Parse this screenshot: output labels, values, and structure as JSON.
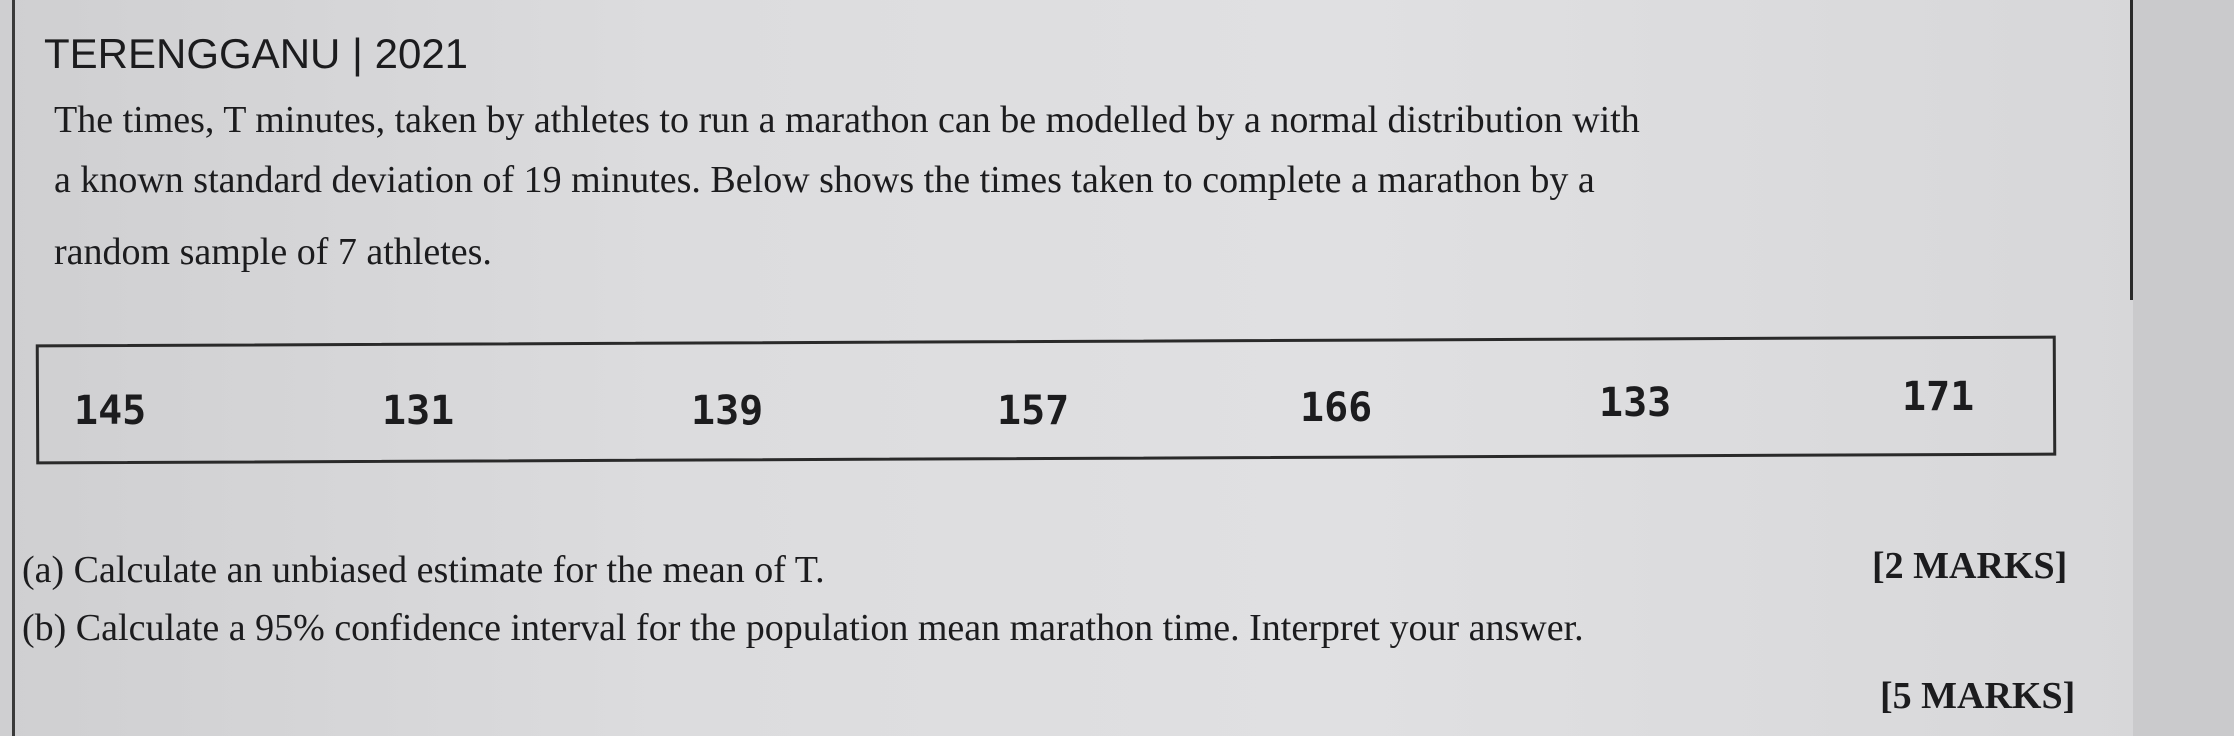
{
  "header": {
    "title": "TERENGGANU | 2021"
  },
  "question": {
    "lines": [
      "The times, T minutes, taken by athletes to run a marathon can be modelled by a normal distribution with",
      "a known standard deviation of 19 minutes. Below shows the times taken to complete a marathon by a",
      "random sample of 7 athletes."
    ]
  },
  "table": {
    "values": [
      "145",
      "131",
      "139",
      "157",
      "166",
      "133",
      "171"
    ]
  },
  "parts": [
    {
      "text": "(a) Calculate an unbiased estimate for the mean of T.",
      "marks": "[2 MARKS]"
    },
    {
      "text": "(b) Calculate a 95% confidence interval for the population mean marathon time. Interpret your answer.",
      "marks": "[5 MARKS]"
    }
  ]
}
